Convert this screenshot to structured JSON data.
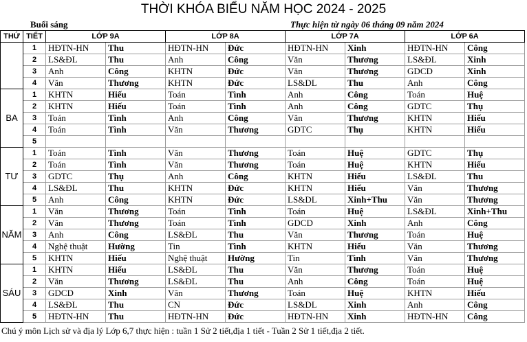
{
  "header": {
    "title": "THỜI KHÓA BIỂU NĂM HỌC 2024 - 2025",
    "session": "Buổi sáng",
    "effective": "Thực hiện từ ngày 06 tháng 09 năm 2024"
  },
  "table": {
    "columns": [
      "THỨ",
      "TIẾT",
      "LỚP 9A",
      "LỚP 8A",
      "LỚP 7A",
      "LỚP 6A"
    ],
    "days": [
      {
        "periods": [
          {
            "number": 1,
            "cells": [
              [
                "HĐTN-HN",
                "Thu"
              ],
              [
                "HĐTN-HN",
                "Đức"
              ],
              [
                "HĐTN-HN",
                "Xinh"
              ],
              [
                "HĐTN-HN",
                "Công"
              ]
            ]
          },
          {
            "number": 2,
            "cells": [
              [
                "LS&ĐL",
                "Thu"
              ],
              [
                "Anh",
                "Công"
              ],
              [
                "Văn",
                "Thương"
              ],
              [
                "LS&ĐL",
                "Xinh"
              ]
            ]
          },
          {
            "number": 3,
            "cells": [
              [
                "Anh",
                "Công"
              ],
              [
                "KHTN",
                "Đức"
              ],
              [
                "Văn",
                "Thương"
              ],
              [
                "GDCD",
                "Xinh"
              ]
            ]
          },
          {
            "number": 4,
            "cells": [
              [
                "Văn",
                "Thương"
              ],
              [
                "KHTN",
                "Đức"
              ],
              [
                "LS&DL",
                "Thu"
              ],
              [
                "Anh",
                "Công"
              ]
            ]
          }
        ]
      },
      {
        "label": "BA",
        "periods": [
          {
            "number": 1,
            "cells": [
              [
                "KHTN",
                "Hiếu"
              ],
              [
                "Toán",
                "Tình"
              ],
              [
                "Anh",
                "Công"
              ],
              [
                "Toán",
                "Huệ"
              ]
            ]
          },
          {
            "number": 2,
            "cells": [
              [
                "KHTN",
                "Hiếu"
              ],
              [
                "Toán",
                "Tình"
              ],
              [
                "Anh",
                "Công"
              ],
              [
                "GDTC",
                "Thụ"
              ]
            ]
          },
          {
            "number": 3,
            "cells": [
              [
                "Toán",
                "Tình"
              ],
              [
                "Anh",
                "Công"
              ],
              [
                "Văn",
                "Thương"
              ],
              [
                "KHTN",
                "Hiếu"
              ]
            ]
          },
          {
            "number": 4,
            "cells": [
              [
                "Toán",
                "Tình"
              ],
              [
                "Văn",
                "Thương"
              ],
              [
                "GDTC",
                "Thụ"
              ],
              [
                "KHTN",
                "Hiếu"
              ]
            ]
          },
          {
            "number": 5,
            "cells": []
          }
        ]
      },
      {
        "label": "TƯ",
        "periods": [
          {
            "number": 1,
            "cells": [
              [
                "Toán",
                "Tình"
              ],
              [
                "Văn",
                "Thương"
              ],
              [
                "Toán",
                "Huệ"
              ],
              [
                "GDTC",
                "Thụ"
              ]
            ]
          },
          {
            "number": 2,
            "cells": [
              [
                "Toán",
                "Tình"
              ],
              [
                "Văn",
                "Thương"
              ],
              [
                "Toán",
                "Huệ"
              ],
              [
                "KHTN",
                "Hiếu"
              ]
            ]
          },
          {
            "number": 3,
            "cells": [
              [
                "GDTC",
                "Thụ"
              ],
              [
                "Anh",
                "Công"
              ],
              [
                "KHTN",
                "Hiếu"
              ],
              [
                "LS&ĐL",
                "Thu"
              ]
            ]
          },
          {
            "number": 4,
            "cells": [
              [
                "LS&ĐL",
                "Thu"
              ],
              [
                "KHTN",
                "Đức"
              ],
              [
                "KHTN",
                "Hiếu"
              ],
              [
                "Văn",
                "Thương"
              ]
            ]
          },
          {
            "number": 5,
            "cells": [
              [
                "Anh",
                "Công"
              ],
              [
                "KHTN",
                "Đức"
              ],
              [
                "LS&DL",
                "Xinh+Thu"
              ],
              [
                "Văn",
                "Thương"
              ]
            ]
          }
        ]
      },
      {
        "label": "NĂM",
        "periods": [
          {
            "number": 1,
            "cells": [
              [
                "Văn",
                "Thương"
              ],
              [
                "Toán",
                "Tình"
              ],
              [
                "Toán",
                "Huệ"
              ],
              [
                "LS&ĐL",
                "Xinh+Thu"
              ]
            ]
          },
          {
            "number": 2,
            "cells": [
              [
                "Văn",
                "Thương"
              ],
              [
                "Toán",
                "Tình"
              ],
              [
                "GDCD",
                "Xinh"
              ],
              [
                "Anh",
                "Công"
              ]
            ]
          },
          {
            "number": 3,
            "cells": [
              [
                "Anh",
                "Công"
              ],
              [
                "LS&ĐL",
                "Thu"
              ],
              [
                "Văn",
                "Thương"
              ],
              [
                "Toán",
                "Huệ"
              ]
            ]
          },
          {
            "number": 4,
            "cells": [
              [
                "Nghệ thuật",
                "Hường"
              ],
              [
                "Tin",
                "Tình"
              ],
              [
                "KHTN",
                "Hiếu"
              ],
              [
                "Văn",
                "Thương"
              ]
            ]
          },
          {
            "number": 5,
            "cells": [
              [
                "KHTN",
                "Hiếu"
              ],
              [
                "Nghệ thuật",
                "Hường"
              ],
              [
                "Tin",
                "Tình"
              ],
              [
                "Văn",
                "Thương"
              ]
            ]
          }
        ]
      },
      {
        "label": "SÁU",
        "periods": [
          {
            "number": 1,
            "cells": [
              [
                "KHTN",
                "Hiếu"
              ],
              [
                "LS&ĐL",
                "Thu"
              ],
              [
                "Văn",
                "Thương"
              ],
              [
                "Toán",
                "Huệ"
              ]
            ]
          },
          {
            "number": 2,
            "cells": [
              [
                "Văn",
                "Thương"
              ],
              [
                "LS&ĐL",
                "Thu"
              ],
              [
                "Anh",
                "Công"
              ],
              [
                "Toán",
                "Huệ"
              ]
            ]
          },
          {
            "number": 3,
            "cells": [
              [
                "GDCD",
                "Xinh"
              ],
              [
                "Văn",
                "Thương"
              ],
              [
                "Toán",
                "Huệ"
              ],
              [
                "KHTN",
                "Hiếu"
              ]
            ]
          },
          {
            "number": 4,
            "cells": [
              [
                "LS&ĐL",
                "Thu"
              ],
              [
                "CN",
                "Đức"
              ],
              [
                "LS&DL",
                "Xinh"
              ],
              [
                "Anh",
                "Công"
              ]
            ]
          },
          {
            "number": 5,
            "cells": [
              [
                "HĐTN-HN",
                "Thu"
              ],
              [
                "HĐTN-HN",
                "Đức"
              ],
              [
                "HĐTN-HN",
                "Xinh"
              ],
              [
                "HĐTN-HN",
                "Công"
              ]
            ]
          }
        ]
      }
    ]
  },
  "footer": {
    "note": "Chú ý môn Lịch sử và địa lý Lớp 6,7 thực hiện : tuần 1 Sử 2 tiết,địa 1 tiết - Tuần 2 Sử 1 tiết,địa 2 tiết."
  }
}
